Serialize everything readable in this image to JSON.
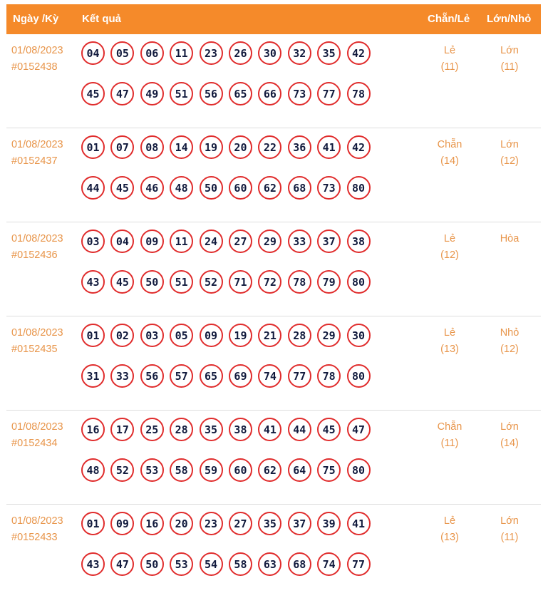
{
  "header": {
    "date_col": "Ngày /Kỳ",
    "result_col": "Kết quả",
    "even_odd_col": "Chẵn/Lẻ",
    "big_small_col": "Lớn/Nhỏ"
  },
  "rows": [
    {
      "date": "01/08/2023",
      "draw": "#0152438",
      "line1": [
        "04",
        "05",
        "06",
        "11",
        "23",
        "26",
        "30",
        "32",
        "35",
        "42"
      ],
      "line2": [
        "45",
        "47",
        "49",
        "51",
        "56",
        "65",
        "66",
        "73",
        "77",
        "78"
      ],
      "even_odd": "Lẻ",
      "even_odd_count": "(11)",
      "big_small": "Lớn",
      "big_small_count": "(11)"
    },
    {
      "date": "01/08/2023",
      "draw": "#0152437",
      "line1": [
        "01",
        "07",
        "08",
        "14",
        "19",
        "20",
        "22",
        "36",
        "41",
        "42"
      ],
      "line2": [
        "44",
        "45",
        "46",
        "48",
        "50",
        "60",
        "62",
        "68",
        "73",
        "80"
      ],
      "even_odd": "Chẵn",
      "even_odd_count": "(14)",
      "big_small": "Lớn",
      "big_small_count": "(12)"
    },
    {
      "date": "01/08/2023",
      "draw": "#0152436",
      "line1": [
        "03",
        "04",
        "09",
        "11",
        "24",
        "27",
        "29",
        "33",
        "37",
        "38"
      ],
      "line2": [
        "43",
        "45",
        "50",
        "51",
        "52",
        "71",
        "72",
        "78",
        "79",
        "80"
      ],
      "even_odd": "Lẻ",
      "even_odd_count": "(12)",
      "big_small": "Hòa",
      "big_small_count": ""
    },
    {
      "date": "01/08/2023",
      "draw": "#0152435",
      "line1": [
        "01",
        "02",
        "03",
        "05",
        "09",
        "19",
        "21",
        "28",
        "29",
        "30"
      ],
      "line2": [
        "31",
        "33",
        "56",
        "57",
        "65",
        "69",
        "74",
        "77",
        "78",
        "80"
      ],
      "even_odd": "Lẻ",
      "even_odd_count": "(13)",
      "big_small": "Nhỏ",
      "big_small_count": "(12)"
    },
    {
      "date": "01/08/2023",
      "draw": "#0152434",
      "line1": [
        "16",
        "17",
        "25",
        "28",
        "35",
        "38",
        "41",
        "44",
        "45",
        "47"
      ],
      "line2": [
        "48",
        "52",
        "53",
        "58",
        "59",
        "60",
        "62",
        "64",
        "75",
        "80"
      ],
      "even_odd": "Chẵn",
      "even_odd_count": "(11)",
      "big_small": "Lớn",
      "big_small_count": "(14)"
    },
    {
      "date": "01/08/2023",
      "draw": "#0152433",
      "line1": [
        "01",
        "09",
        "16",
        "20",
        "23",
        "27",
        "35",
        "37",
        "39",
        "41"
      ],
      "line2": [
        "43",
        "47",
        "50",
        "53",
        "54",
        "58",
        "63",
        "68",
        "74",
        "77"
      ],
      "even_odd": "Lẻ",
      "even_odd_count": "(13)",
      "big_small": "Lớn",
      "big_small_count": "(11)"
    }
  ],
  "colors": {
    "header_bg": "#f58a2a",
    "accent_text": "#e8954a",
    "ball_border": "#e02c2c",
    "ball_text": "#111a3d"
  }
}
